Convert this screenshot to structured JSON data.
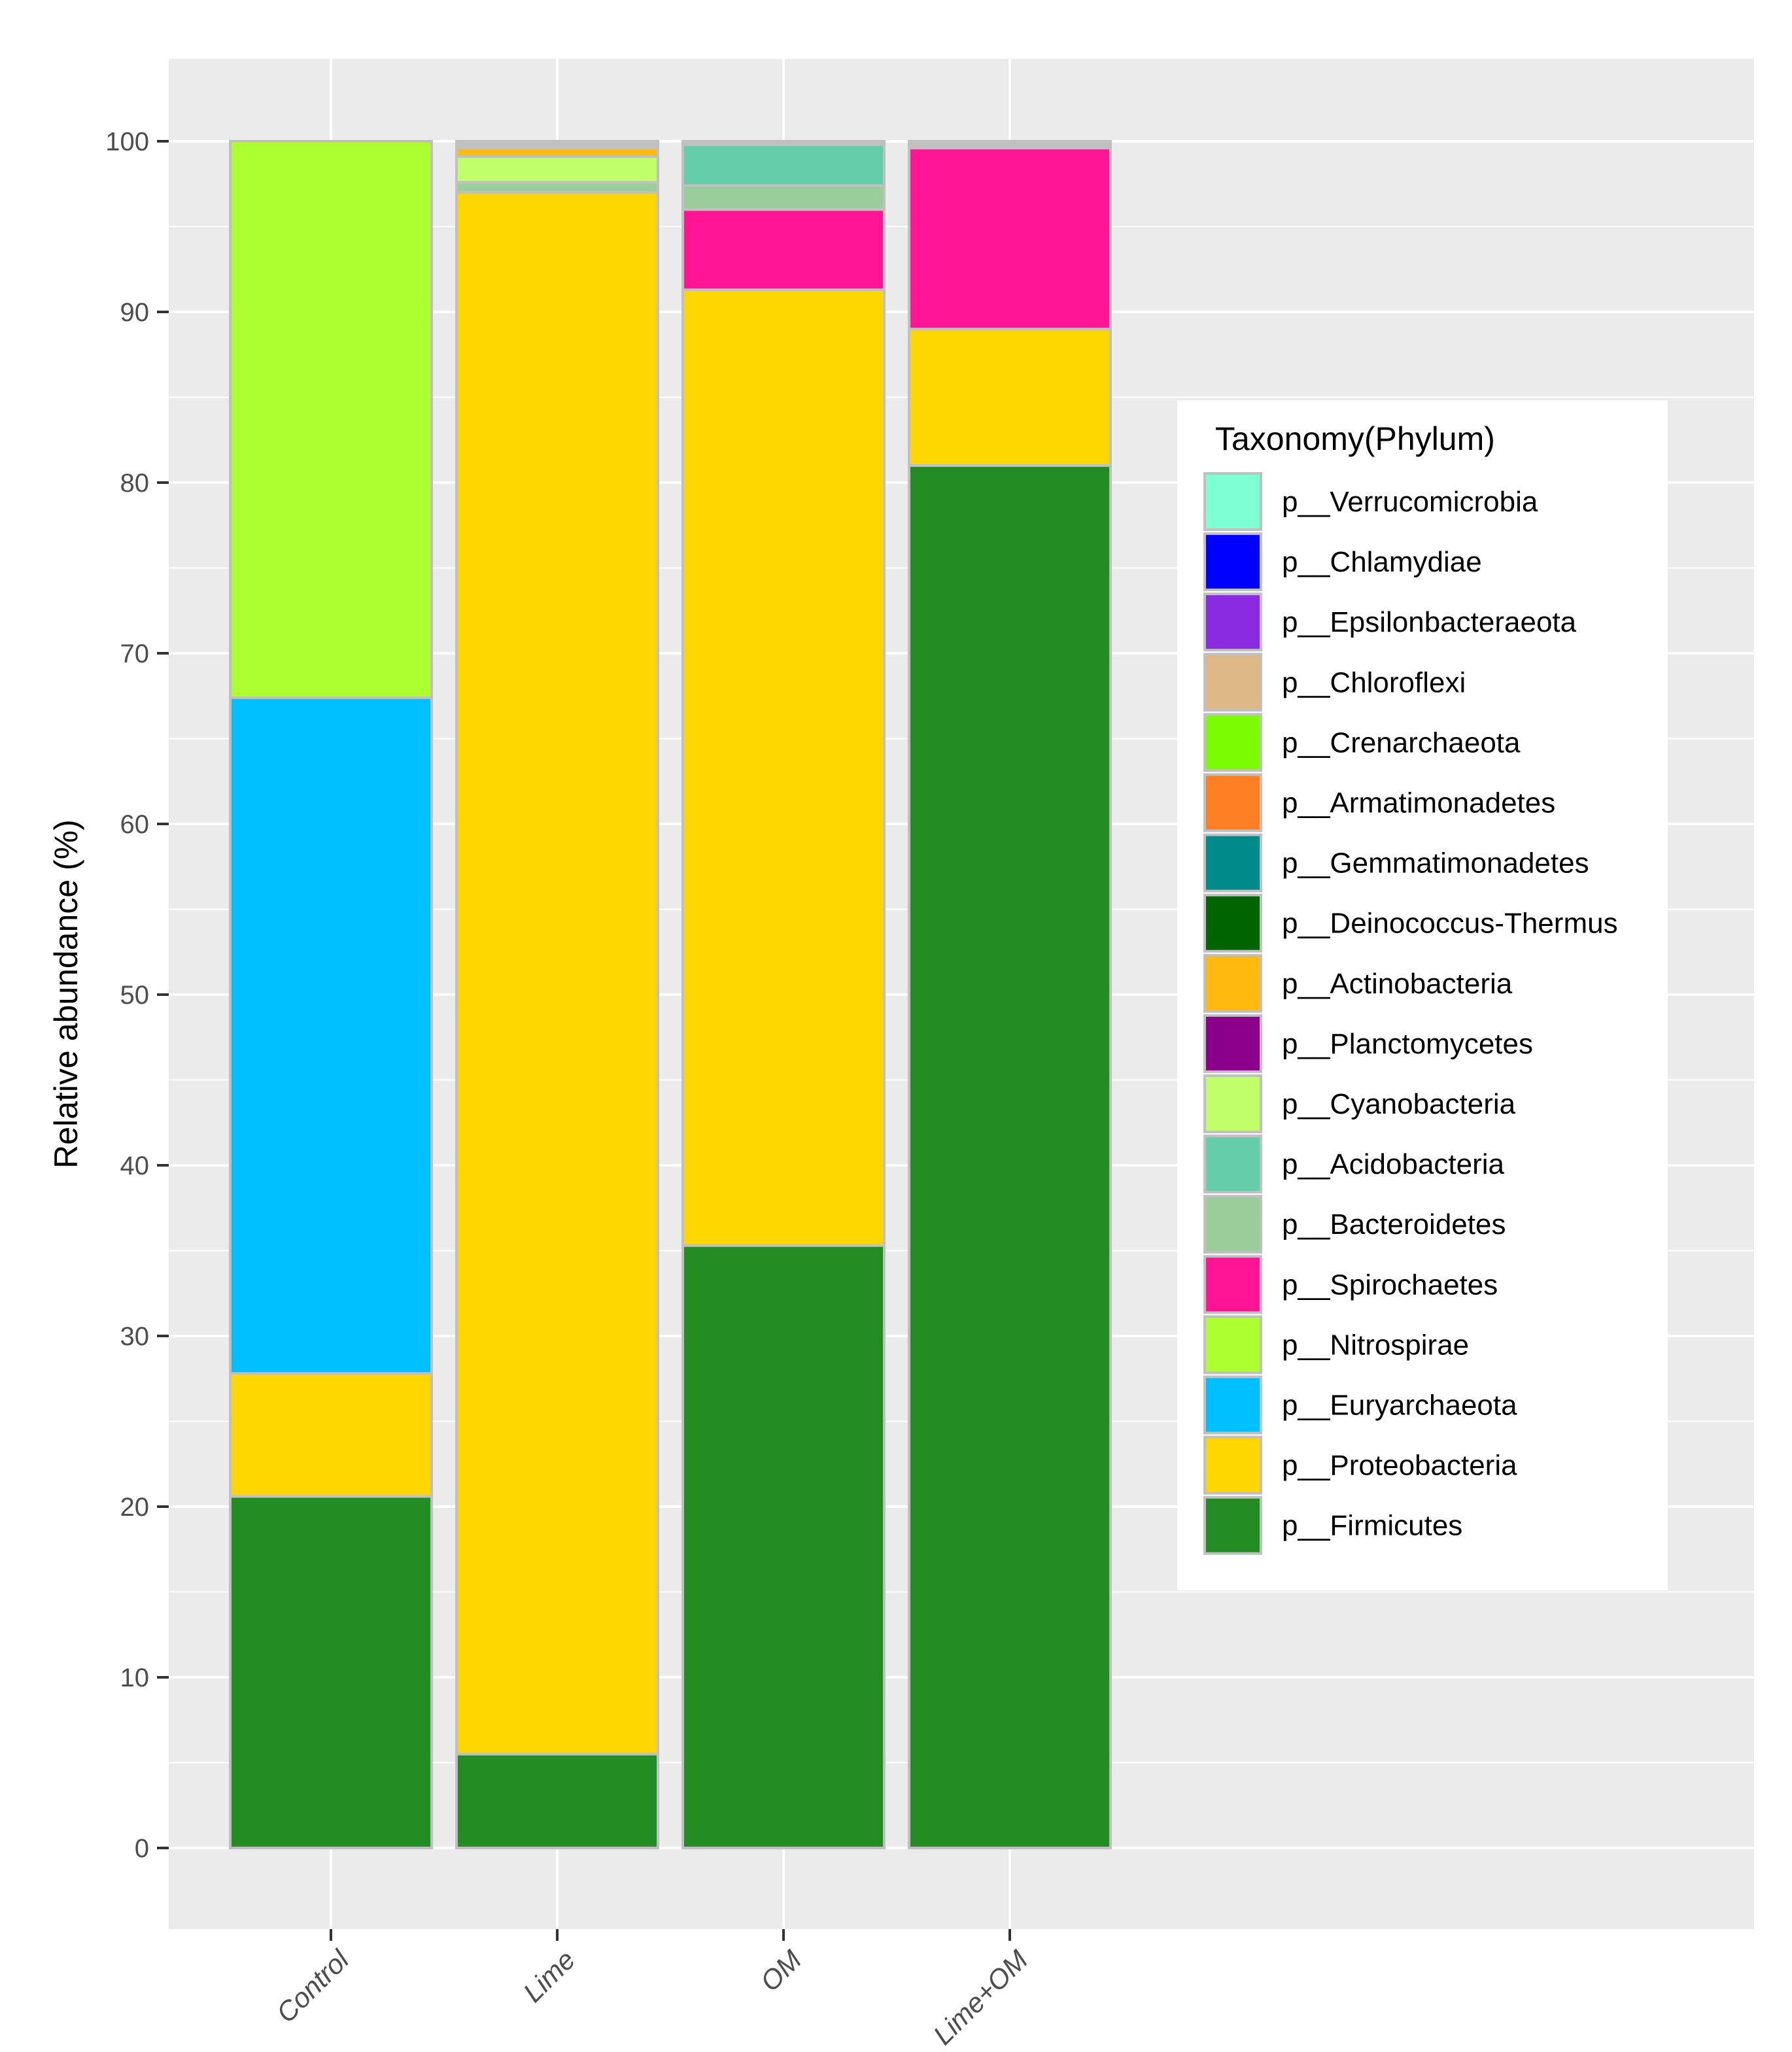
{
  "chart_data": {
    "type": "bar",
    "stacked": true,
    "ylabel": "Relative abundance (%)",
    "xlabel": "",
    "ylim": [
      -5,
      105
    ],
    "yticks": [
      0,
      10,
      20,
      30,
      40,
      50,
      60,
      70,
      80,
      90,
      100
    ],
    "grid": true,
    "categories": [
      "Control",
      "Lime",
      "OM",
      "Lime+OM"
    ],
    "legend": {
      "title": "Taxonomy(Phylum)",
      "placement": "right",
      "entries": [
        {
          "name": "p__Verrucomicrobia",
          "color": "#7FFFD4"
        },
        {
          "name": "p__Chlamydiae",
          "color": "#0000FF"
        },
        {
          "name": "p__Epsilonbacteraeota",
          "color": "#8A2BE2"
        },
        {
          "name": "p__Chloroflexi",
          "color": "#DEB887"
        },
        {
          "name": "p__Crenarchaeota",
          "color": "#7CFC00"
        },
        {
          "name": "p__Armatimonadetes",
          "color": "#FF7F24"
        },
        {
          "name": "p__Gemmatimonadetes",
          "color": "#008B8B"
        },
        {
          "name": "p__Deinococcus-Thermus",
          "color": "#006400"
        },
        {
          "name": "p__Actinobacteria",
          "color": "#FFB90F"
        },
        {
          "name": "p__Planctomycetes",
          "color": "#8B008B"
        },
        {
          "name": "p__Cyanobacteria",
          "color": "#C0FF6A"
        },
        {
          "name": "p__Acidobacteria",
          "color": "#66CDAA"
        },
        {
          "name": "p__Bacteroidetes",
          "color": "#9BCD9B"
        },
        {
          "name": "p__Spirochaetes",
          "color": "#FF1493"
        },
        {
          "name": "p__Nitrospirae",
          "color": "#ADFF2F"
        },
        {
          "name": "p__Euryarchaeota",
          "color": "#00BFFF"
        },
        {
          "name": "p__Proteobacteria",
          "color": "#FFD700"
        },
        {
          "name": "p__Firmicutes",
          "color": "#228B22"
        }
      ]
    },
    "series": [
      {
        "name": "p__Firmicutes",
        "values": [
          20.6,
          5.5,
          35.3,
          81.0
        ]
      },
      {
        "name": "p__Proteobacteria",
        "values": [
          7.2,
          91.5,
          56.0,
          8.0
        ]
      },
      {
        "name": "p__Euryarchaeota",
        "values": [
          39.6,
          0.0,
          0.0,
          0.0
        ]
      },
      {
        "name": "p__Nitrospirae",
        "values": [
          32.6,
          0.0,
          0.0,
          0.0
        ]
      },
      {
        "name": "p__Spirochaetes",
        "values": [
          0.0,
          0.0,
          4.7,
          10.6
        ]
      },
      {
        "name": "p__Bacteroidetes",
        "values": [
          0.0,
          0.6,
          1.4,
          0.0
        ]
      },
      {
        "name": "p__Acidobacteria",
        "values": [
          0.0,
          0.0,
          2.4,
          0.0
        ]
      },
      {
        "name": "p__Cyanobacteria",
        "values": [
          0.0,
          1.5,
          0.0,
          0.0
        ]
      },
      {
        "name": "p__Planctomycetes",
        "values": [
          0.0,
          0.0,
          0.0,
          0.0
        ]
      },
      {
        "name": "p__Actinobacteria",
        "values": [
          0.0,
          0.5,
          0.0,
          0.0
        ]
      },
      {
        "name": "p__Deinococcus-Thermus",
        "values": [
          0.0,
          0.0,
          0.0,
          0.0
        ]
      },
      {
        "name": "p__Gemmatimonadetes",
        "values": [
          0.0,
          0.0,
          0.0,
          0.0
        ]
      },
      {
        "name": "p__Armatimonadetes",
        "values": [
          0.0,
          0.0,
          0.0,
          0.0
        ]
      },
      {
        "name": "p__Crenarchaeota",
        "values": [
          0.0,
          0.0,
          0.0,
          0.0
        ]
      },
      {
        "name": "p__Chloroflexi",
        "values": [
          0.0,
          0.0,
          0.0,
          0.0
        ]
      },
      {
        "name": "p__Epsilonbacteraeota",
        "values": [
          0.0,
          0.0,
          0.0,
          0.0
        ]
      },
      {
        "name": "p__Chlamydiae",
        "values": [
          0.0,
          0.0,
          0.0,
          0.0
        ]
      },
      {
        "name": "p__Verrucomicrobia",
        "values": [
          0.0,
          0.0,
          0.0,
          0.0
        ]
      }
    ],
    "colors": {
      "panel_background": "#EBEBEB",
      "grid_line": "#FFFFFF",
      "bar_outline": "#C0C0C0",
      "other_fill": "#C0C0C0"
    }
  }
}
